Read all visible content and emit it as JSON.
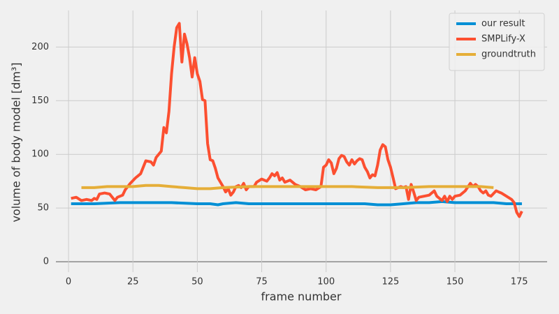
{
  "chart_data": {
    "type": "line",
    "xlabel": "frame number",
    "ylabel": "volume of body model [dm³]",
    "xlim": [
      -4.9,
      185.8
    ],
    "ylim": [
      -9.7,
      234
    ],
    "xticks": [
      0,
      25,
      50,
      75,
      100,
      125,
      150,
      175
    ],
    "yticks": [
      0,
      50,
      100,
      150,
      200
    ],
    "grid": true,
    "legend": "upper right",
    "series": [
      {
        "name": "our result",
        "color": "#008fd5",
        "x": [
          1,
          10,
          20,
          30,
          40,
          50,
          55,
          58,
          60,
          65,
          70,
          80,
          90,
          100,
          110,
          115,
          120,
          125,
          130,
          135,
          140,
          145,
          150,
          155,
          160,
          165,
          170,
          176
        ],
        "values": [
          54,
          54,
          55,
          55,
          55,
          54,
          54,
          53,
          54,
          55,
          54,
          54,
          54,
          54,
          54,
          54,
          53,
          53,
          54,
          55,
          55,
          56,
          55,
          55,
          55,
          55,
          54,
          54
        ]
      },
      {
        "name": "SMPLify-X",
        "color": "#fc4f30",
        "x": [
          1,
          3,
          5,
          7,
          9,
          10,
          11,
          12,
          14,
          16,
          17,
          18,
          19,
          21,
          22,
          24,
          26,
          28,
          30,
          32,
          33,
          34,
          36,
          37,
          38,
          39,
          40,
          41,
          42,
          43,
          44,
          45,
          46,
          47,
          48,
          49,
          50,
          51,
          52,
          53,
          54,
          55,
          56,
          57,
          58,
          60,
          61,
          62,
          63,
          64,
          65,
          66,
          67,
          68,
          69,
          70,
          72,
          73,
          75,
          77,
          78,
          79,
          80,
          81,
          82,
          83,
          84,
          86,
          88,
          90,
          92,
          94,
          96,
          98,
          99,
          100,
          101,
          102,
          103,
          104,
          105,
          106,
          107,
          108,
          109,
          110,
          111,
          112,
          113,
          114,
          115,
          116,
          117,
          118,
          119,
          120,
          121,
          122,
          123,
          124,
          125,
          126,
          127,
          128,
          129,
          130,
          131,
          132,
          133,
          134,
          135,
          136,
          138,
          140,
          142,
          143,
          145,
          146,
          147,
          148,
          149,
          150,
          152,
          154,
          156,
          157,
          158,
          159,
          160,
          161,
          162,
          163,
          164,
          166,
          167,
          168,
          170,
          172,
          173,
          174,
          175,
          176
        ],
        "values": [
          59,
          60,
          57,
          58,
          57,
          59,
          58,
          63,
          64,
          63,
          60,
          57,
          60,
          62,
          67,
          73,
          78,
          82,
          94,
          93,
          90,
          97,
          103,
          125,
          120,
          140,
          175,
          200,
          218,
          222,
          186,
          212,
          203,
          190,
          172,
          190,
          175,
          168,
          151,
          150,
          110,
          95,
          94,
          87,
          78,
          70,
          65,
          68,
          62,
          65,
          70,
          71,
          69,
          73,
          67,
          70,
          70,
          74,
          77,
          75,
          78,
          82,
          80,
          83,
          76,
          78,
          74,
          76,
          72,
          70,
          67,
          68,
          67,
          70,
          88,
          90,
          95,
          92,
          82,
          87,
          96,
          99,
          98,
          93,
          90,
          95,
          91,
          94,
          96,
          95,
          88,
          84,
          78,
          81,
          80,
          90,
          104,
          109,
          107,
          95,
          88,
          78,
          68,
          69,
          70,
          69,
          70,
          58,
          72,
          65,
          57,
          60,
          61,
          62,
          66,
          61,
          57,
          61,
          56,
          61,
          58,
          61,
          62,
          66,
          73,
          70,
          72,
          70,
          66,
          64,
          66,
          62,
          61,
          66,
          65,
          64,
          61,
          58,
          55,
          46,
          42,
          47
        ]
      },
      {
        "name": "groundtruth",
        "color": "#e5ae38",
        "x": [
          5,
          10,
          15,
          20,
          25,
          30,
          35,
          40,
          45,
          50,
          55,
          60,
          70,
          80,
          90,
          100,
          110,
          120,
          130,
          140,
          150,
          160,
          165
        ],
        "values": [
          69,
          69,
          70,
          70,
          70,
          71,
          71,
          70,
          69,
          68,
          68,
          69,
          70,
          70,
          70,
          70,
          70,
          69,
          69,
          70,
          70,
          70,
          69
        ]
      }
    ]
  }
}
